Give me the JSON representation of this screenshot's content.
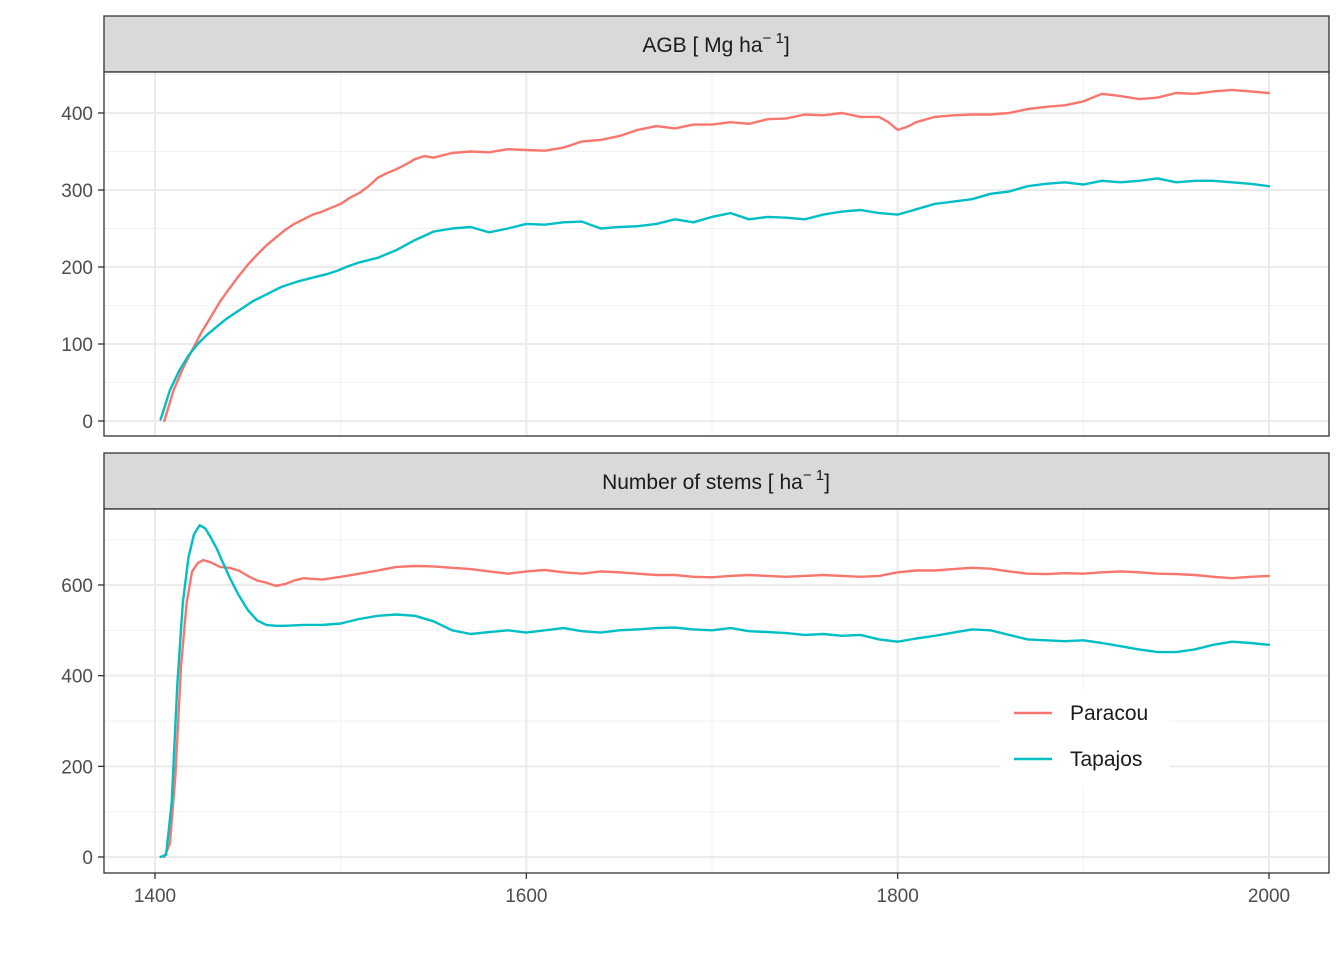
{
  "chart_data": {
    "type": "line",
    "layout": "faceted, 2 panels stacked vertically, shared x axis",
    "theme": "bw",
    "grid": true,
    "legend_position": "inside-bottom-right",
    "series_colors": {
      "Paracou": "#F8766D",
      "Tapajos": "#00BFC4"
    },
    "xlim": [
      1400,
      2000
    ],
    "x_ticks": [
      1400,
      1600,
      1800,
      2000
    ],
    "legend": {
      "entries": [
        {
          "name": "Paracou",
          "color": "#F8766D"
        },
        {
          "name": "Tapajos",
          "color": "#00BFC4"
        }
      ]
    },
    "panels": [
      {
        "strip": {
          "main": "AGB [ Mg ha",
          "sup": "− 1",
          "close": "]"
        },
        "ylim": [
          0,
          430
        ],
        "y_ticks": [
          0,
          100,
          200,
          300,
          400
        ],
        "series": [
          {
            "name": "Paracou",
            "x": [
              1405,
              1410,
              1415,
              1420,
              1425,
              1430,
              1435,
              1440,
              1445,
              1450,
              1455,
              1460,
              1465,
              1470,
              1475,
              1480,
              1485,
              1490,
              1495,
              1500,
              1505,
              1510,
              1515,
              1520,
              1525,
              1530,
              1535,
              1540,
              1545,
              1550,
              1560,
              1570,
              1580,
              1590,
              1600,
              1610,
              1620,
              1630,
              1640,
              1650,
              1660,
              1670,
              1680,
              1690,
              1700,
              1710,
              1720,
              1730,
              1740,
              1750,
              1760,
              1770,
              1780,
              1790,
              1795,
              1800,
              1805,
              1810,
              1820,
              1830,
              1840,
              1850,
              1860,
              1870,
              1880,
              1890,
              1900,
              1910,
              1920,
              1930,
              1940,
              1950,
              1960,
              1970,
              1980,
              1990,
              2000
            ],
            "y": [
              0,
              40,
              68,
              92,
              115,
              135,
              155,
              172,
              188,
              203,
              216,
              228,
              238,
              248,
              256,
              262,
              268,
              272,
              277,
              282,
              290,
              296,
              305,
              316,
              322,
              327,
              333,
              340,
              344,
              342,
              348,
              350,
              349,
              353,
              352,
              351,
              355,
              363,
              365,
              370,
              378,
              383,
              380,
              385,
              385,
              388,
              386,
              392,
              393,
              398,
              397,
              400,
              395,
              395,
              388,
              378,
              382,
              388,
              395,
              397,
              398,
              398,
              400,
              405,
              408,
              410,
              415,
              425,
              422,
              418,
              420,
              426,
              425,
              428,
              430,
              428,
              426
            ]
          },
          {
            "name": "Tapajos",
            "x": [
              1403,
              1408,
              1413,
              1418,
              1423,
              1428,
              1433,
              1438,
              1443,
              1448,
              1453,
              1458,
              1463,
              1468,
              1473,
              1478,
              1483,
              1488,
              1493,
              1498,
              1503,
              1510,
              1520,
              1530,
              1540,
              1550,
              1560,
              1570,
              1580,
              1590,
              1600,
              1610,
              1620,
              1630,
              1640,
              1650,
              1660,
              1670,
              1680,
              1690,
              1700,
              1710,
              1720,
              1730,
              1740,
              1750,
              1760,
              1770,
              1780,
              1790,
              1800,
              1810,
              1820,
              1830,
              1840,
              1850,
              1860,
              1870,
              1880,
              1890,
              1900,
              1910,
              1920,
              1930,
              1940,
              1950,
              1960,
              1970,
              1980,
              1990,
              2000
            ],
            "y": [
              2,
              40,
              65,
              85,
              100,
              112,
              122,
              132,
              140,
              148,
              156,
              162,
              168,
              174,
              178,
              182,
              185,
              188,
              191,
              195,
              200,
              206,
              212,
              222,
              235,
              246,
              250,
              252,
              245,
              250,
              256,
              255,
              258,
              259,
              250,
              252,
              253,
              256,
              262,
              258,
              265,
              270,
              262,
              265,
              264,
              262,
              268,
              272,
              274,
              270,
              268,
              275,
              282,
              285,
              288,
              295,
              298,
              305,
              308,
              310,
              307,
              312,
              310,
              312,
              315,
              310,
              312,
              312,
              310,
              308,
              305
            ]
          }
        ]
      },
      {
        "strip": {
          "main": "Number of stems [ ha",
          "sup": "− 1",
          "close": "]"
        },
        "ylim": [
          0,
          750
        ],
        "y_ticks": [
          0,
          200,
          400,
          600
        ],
        "series": [
          {
            "name": "Paracou",
            "x": [
              1405,
              1408,
              1411,
              1414,
              1417,
              1420,
              1423,
              1426,
              1430,
              1435,
              1440,
              1445,
              1450,
              1455,
              1460,
              1465,
              1470,
              1475,
              1480,
              1490,
              1500,
              1510,
              1520,
              1530,
              1540,
              1550,
              1560,
              1570,
              1580,
              1590,
              1600,
              1610,
              1620,
              1630,
              1640,
              1650,
              1660,
              1670,
              1680,
              1690,
              1700,
              1710,
              1720,
              1730,
              1740,
              1750,
              1760,
              1770,
              1780,
              1790,
              1800,
              1810,
              1820,
              1830,
              1840,
              1850,
              1860,
              1870,
              1880,
              1890,
              1900,
              1910,
              1920,
              1930,
              1940,
              1950,
              1960,
              1970,
              1980,
              1990,
              2000
            ],
            "y": [
              0,
              30,
              180,
              420,
              560,
              630,
              648,
              655,
              650,
              640,
              638,
              632,
              620,
              610,
              605,
              598,
              602,
              610,
              615,
              612,
              618,
              625,
              632,
              640,
              642,
              641,
              638,
              635,
              630,
              625,
              630,
              633,
              628,
              625,
              630,
              628,
              625,
              622,
              622,
              618,
              617,
              620,
              622,
              620,
              618,
              620,
              622,
              620,
              618,
              620,
              628,
              632,
              632,
              635,
              638,
              636,
              630,
              625,
              624,
              626,
              625,
              628,
              630,
              628,
              625,
              624,
              622,
              618,
              615,
              618,
              620
            ]
          },
          {
            "name": "Tapajos",
            "x": [
              1403,
              1406,
              1409,
              1412,
              1415,
              1418,
              1421,
              1424,
              1427,
              1430,
              1433,
              1436,
              1440,
              1445,
              1450,
              1455,
              1460,
              1465,
              1470,
              1480,
              1490,
              1500,
              1510,
              1520,
              1530,
              1540,
              1550,
              1560,
              1570,
              1580,
              1590,
              1600,
              1610,
              1620,
              1630,
              1640,
              1650,
              1660,
              1670,
              1680,
              1690,
              1700,
              1710,
              1720,
              1730,
              1740,
              1750,
              1760,
              1770,
              1780,
              1790,
              1800,
              1810,
              1820,
              1830,
              1840,
              1850,
              1860,
              1870,
              1880,
              1890,
              1900,
              1910,
              1920,
              1930,
              1940,
              1950,
              1960,
              1970,
              1980,
              1990,
              2000
            ],
            "y": [
              0,
              5,
              120,
              380,
              560,
              660,
              712,
              732,
              725,
              705,
              682,
              655,
              618,
              578,
              545,
              522,
              512,
              510,
              510,
              512,
              512,
              515,
              525,
              532,
              535,
              532,
              520,
              500,
              492,
              496,
              500,
              495,
              500,
              505,
              498,
              495,
              500,
              502,
              505,
              506,
              502,
              500,
              505,
              498,
              496,
              494,
              490,
              492,
              488,
              490,
              480,
              475,
              482,
              488,
              495,
              502,
              500,
              490,
              480,
              478,
              476,
              478,
              472,
              465,
              458,
              452,
              452,
              458,
              468,
              475,
              472,
              468
            ]
          }
        ]
      }
    ]
  }
}
